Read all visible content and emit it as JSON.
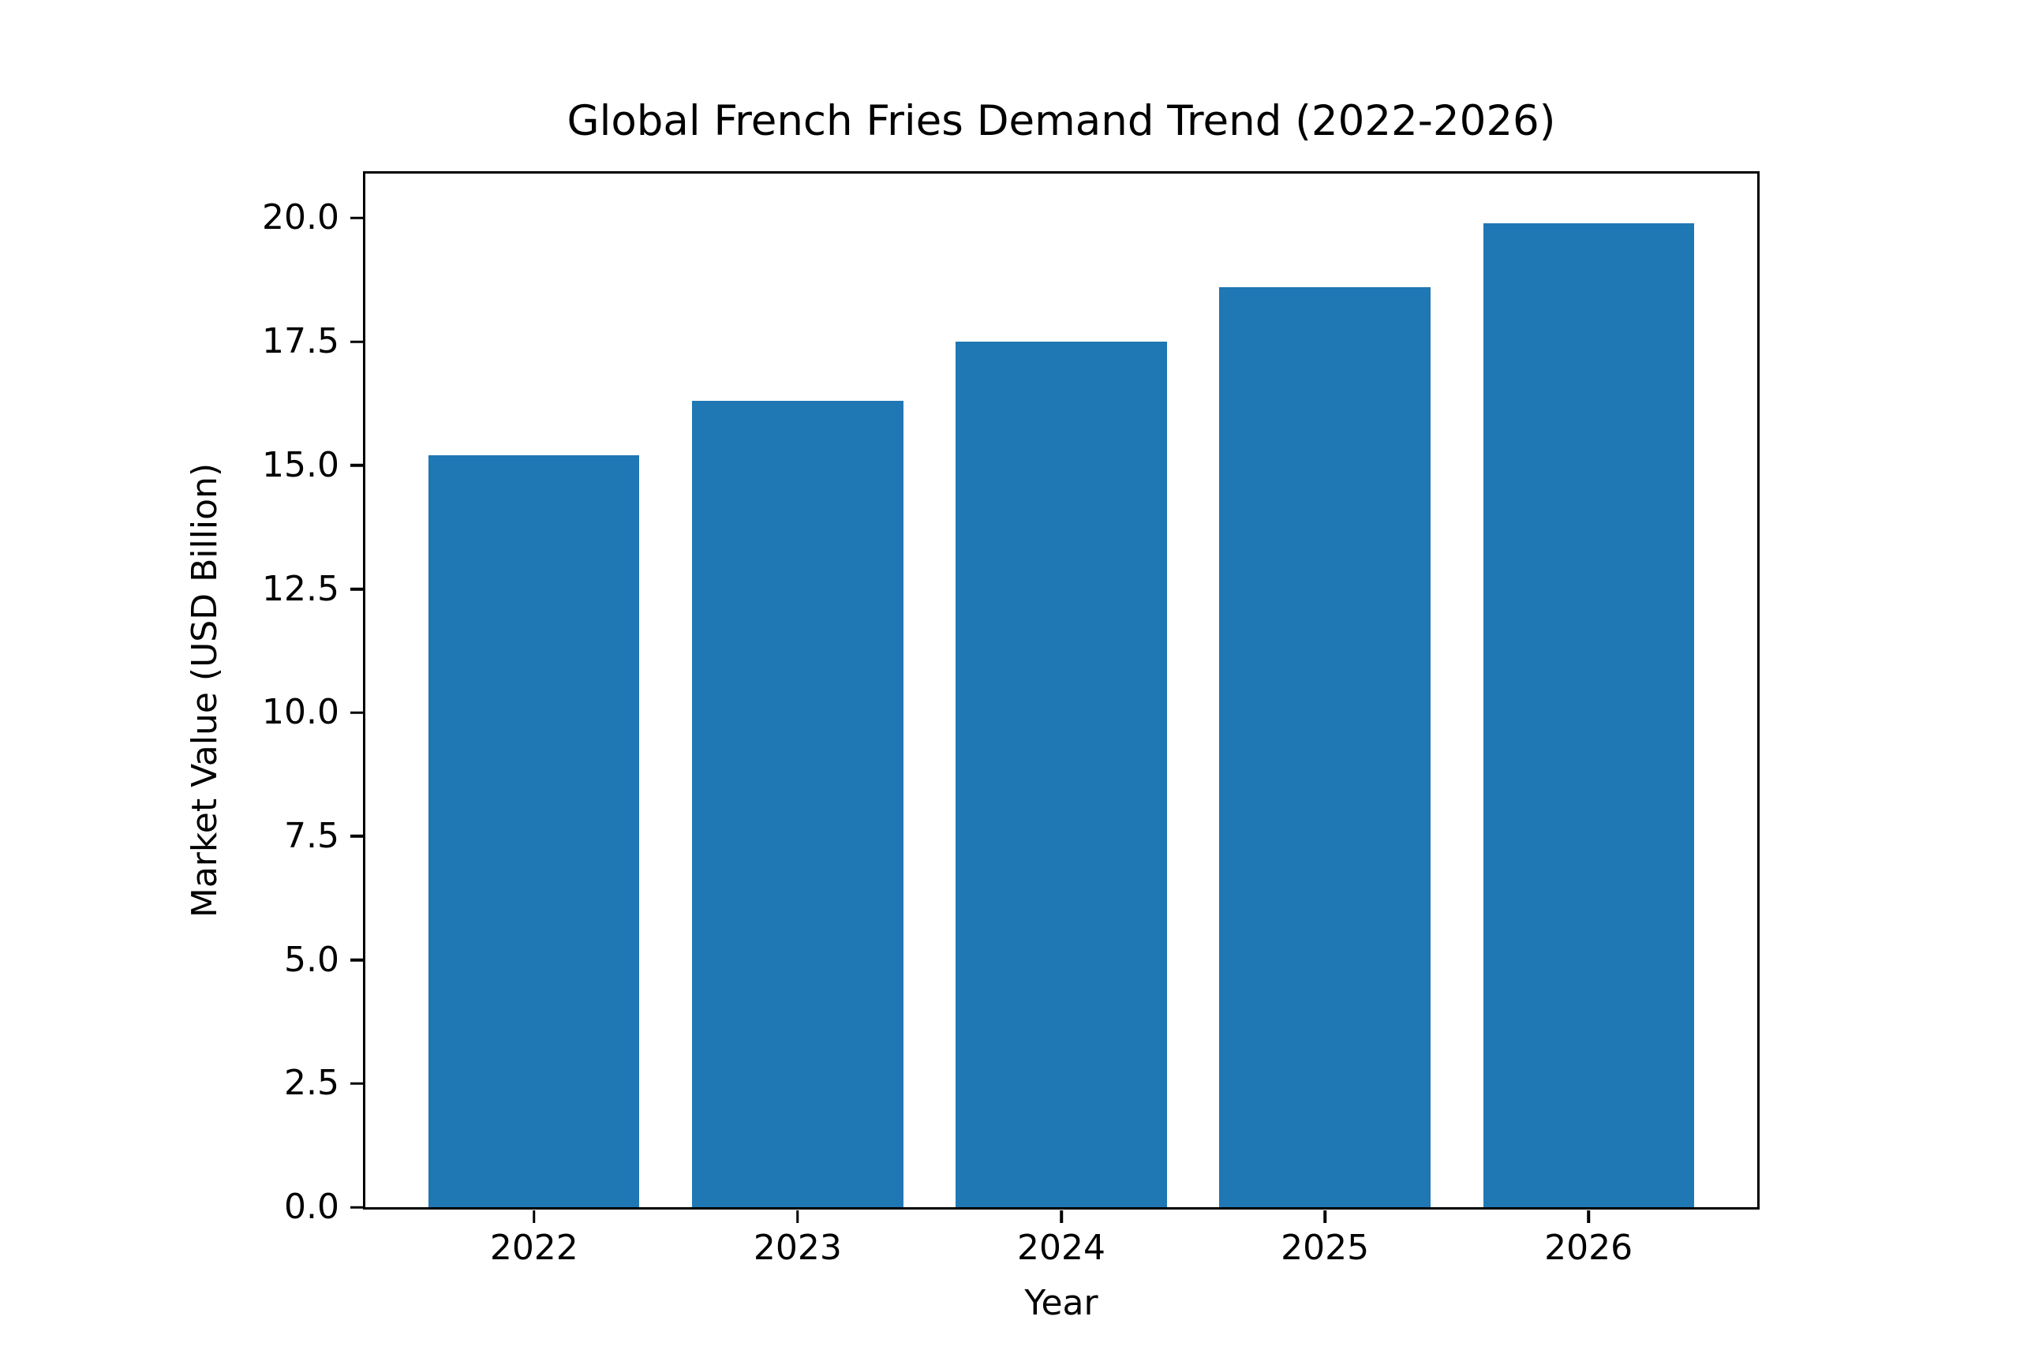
{
  "chart_data": {
    "type": "bar",
    "title": "Global French Fries Demand Trend (2022-2026)",
    "xlabel": "Year",
    "ylabel": "Market Value (USD Billion)",
    "categories": [
      "2022",
      "2023",
      "2024",
      "2025",
      "2026"
    ],
    "values": [
      15.2,
      16.3,
      17.5,
      18.6,
      19.9
    ],
    "bar_color": "#1f77b4",
    "ylim": [
      0,
      20.9
    ],
    "yticks": [
      0.0,
      2.5,
      5.0,
      7.5,
      10.0,
      12.5,
      15.0,
      17.5,
      20.0
    ],
    "ytick_labels": [
      "0.0",
      "2.5",
      "5.0",
      "7.5",
      "10.0",
      "12.5",
      "15.0",
      "17.5",
      "20.0"
    ],
    "grid": false,
    "legend": null,
    "axis_color": "#000000",
    "background_color": "#ffffff"
  }
}
